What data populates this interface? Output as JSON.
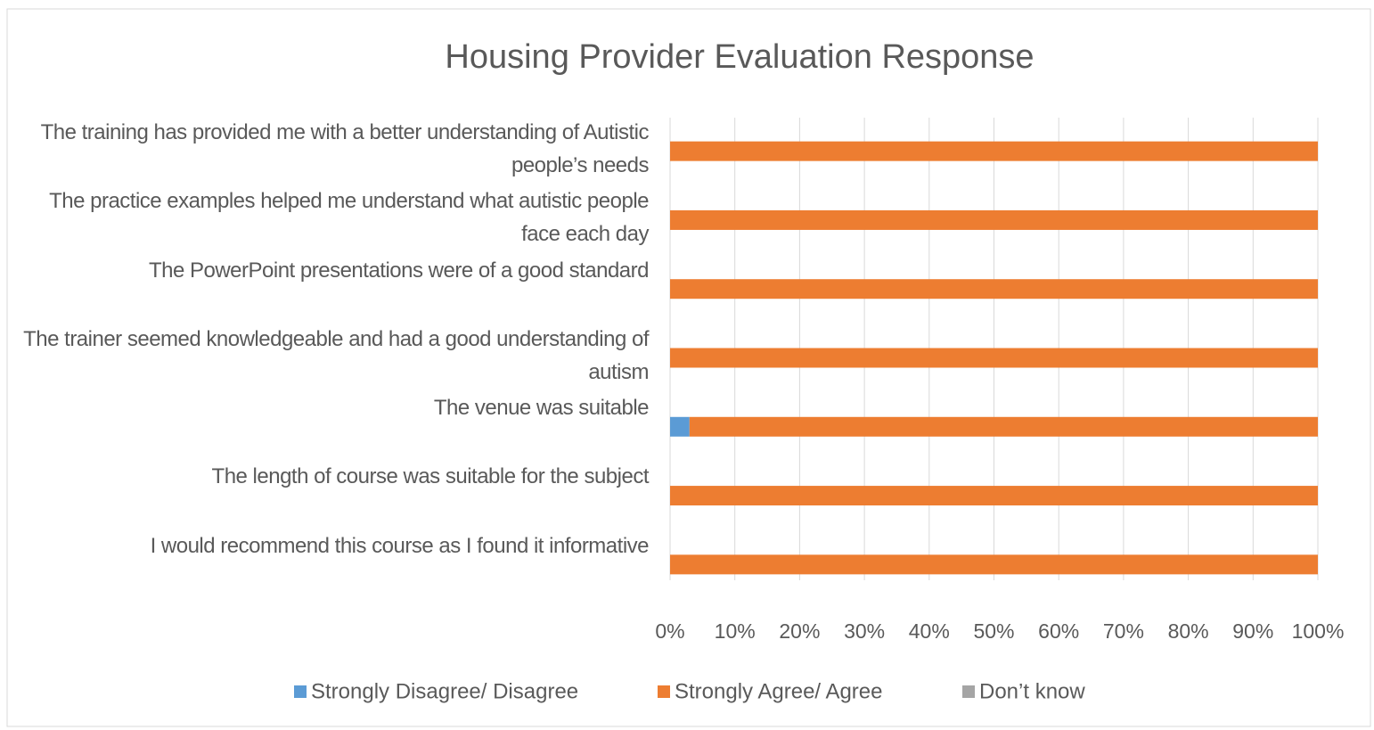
{
  "chart_data": {
    "type": "stacked-bar-horizontal",
    "title": "Housing Provider Evaluation Response",
    "categories": [
      "The training has provided me with a better understanding of Autistic people’s needs",
      "The practice examples helped me understand what autistic people face each day",
      "The PowerPoint presentations were of a good standard",
      "The trainer seemed knowledgeable and had a good understanding of autism",
      "The venue was suitable",
      "The length of course was suitable for the subject",
      "I would recommend this course as I found it informative"
    ],
    "series": [
      {
        "name": "Strongly Disagree/ Disagree",
        "color": "#5b9bd5",
        "values": [
          0,
          0,
          0,
          0,
          3,
          0,
          0
        ]
      },
      {
        "name": "Strongly Agree/ Agree",
        "color": "#ed7d31",
        "values": [
          100,
          100,
          100,
          100,
          97,
          100,
          100
        ]
      },
      {
        "name": "Don’t know",
        "color": "#a5a5a5",
        "values": [
          0,
          0,
          0,
          0,
          0,
          0,
          0
        ]
      }
    ],
    "xlim": [
      0,
      100
    ],
    "xticks": [
      {
        "value": 0,
        "label": "0%"
      },
      {
        "value": 10,
        "label": "10%"
      },
      {
        "value": 20,
        "label": "20%"
      },
      {
        "value": 30,
        "label": "30%"
      },
      {
        "value": 40,
        "label": "40%"
      },
      {
        "value": 50,
        "label": "50%"
      },
      {
        "value": 60,
        "label": "60%"
      },
      {
        "value": 70,
        "label": "70%"
      },
      {
        "value": 80,
        "label": "80%"
      },
      {
        "value": 90,
        "label": "90%"
      },
      {
        "value": 100,
        "label": "100%"
      }
    ],
    "grid": true,
    "legend": "bottom"
  }
}
